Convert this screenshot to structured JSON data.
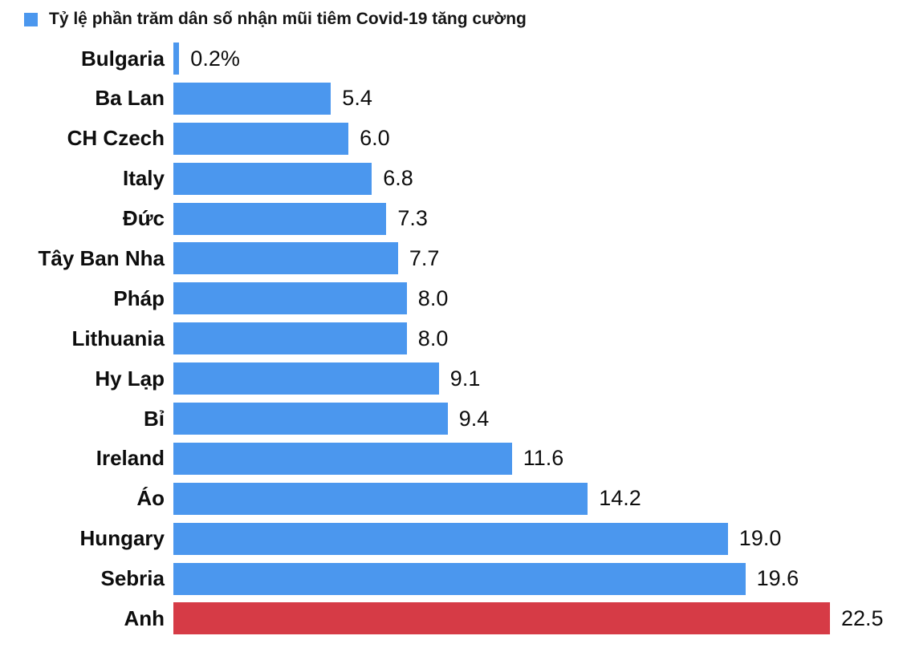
{
  "legend": {
    "label": "Tỷ lệ phần trăm dân số nhận mũi tiêm Covid-19 tăng cường",
    "swatch_color": "#4B97EE"
  },
  "colors": {
    "bar_blue": "#4B97EE",
    "bar_red": "#D63B46",
    "text": "#0d0d0d"
  },
  "chart_data": {
    "type": "bar",
    "orientation": "horizontal",
    "title": "Tỷ lệ phần trăm dân số nhận mũi tiêm Covid-19 tăng cường",
    "legend_position": "top-left",
    "grid": false,
    "xlim": [
      0,
      22.5
    ],
    "categories": [
      "Bulgaria",
      "Ba Lan",
      "CH Czech",
      "Italy",
      "Đức",
      "Tây Ban Nha",
      "Pháp",
      "Lithuania",
      "Hy Lạp",
      "Bỉ",
      "Ireland",
      "Áo",
      "Hungary",
      "Sebria",
      "Anh"
    ],
    "values": [
      0.2,
      5.4,
      6.0,
      6.8,
      7.3,
      7.7,
      8.0,
      8.0,
      9.1,
      9.4,
      11.6,
      14.2,
      19.0,
      19.6,
      22.5
    ],
    "value_labels": [
      "0.2%",
      "5.4",
      "6.0",
      "6.8",
      "7.3",
      "7.7",
      "8.0",
      "8.0",
      "9.1",
      "9.4",
      "11.6",
      "14.2",
      "19.0",
      "19.6",
      "22.5"
    ],
    "bar_colors": [
      "#4B97EE",
      "#4B97EE",
      "#4B97EE",
      "#4B97EE",
      "#4B97EE",
      "#4B97EE",
      "#4B97EE",
      "#4B97EE",
      "#4B97EE",
      "#4B97EE",
      "#4B97EE",
      "#4B97EE",
      "#4B97EE",
      "#4B97EE",
      "#D63B46"
    ],
    "highlight_category": "Anh"
  }
}
